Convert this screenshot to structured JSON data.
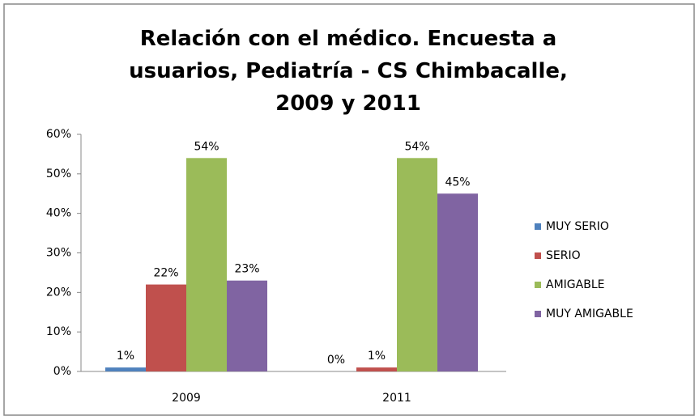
{
  "chart_data": {
    "type": "bar",
    "title": "Relación con el médico. Encuesta a usuarios, Pediatría - CS Chimbacalle, 2009 y 2011",
    "categories": [
      "2009",
      "2011"
    ],
    "series": [
      {
        "name": "MUY SERIO",
        "color": "#4f81bd",
        "values": [
          1,
          0
        ],
        "value_labels": [
          "1%",
          "0%"
        ]
      },
      {
        "name": "SERIO",
        "color": "#c0504d",
        "values": [
          22,
          1
        ],
        "value_labels": [
          "22%",
          "1%"
        ]
      },
      {
        "name": "AMIGABLE",
        "color": "#9bbb59",
        "values": [
          54,
          54
        ],
        "value_labels": [
          "54%",
          "54%"
        ]
      },
      {
        "name": "MUY AMIGABLE",
        "color": "#8064a2",
        "values": [
          23,
          45
        ],
        "value_labels": [
          "23%",
          "45%"
        ]
      }
    ],
    "ylim": [
      0,
      60
    ],
    "yticks": [
      {
        "value": 0,
        "label": "0%"
      },
      {
        "value": 10,
        "label": "10%"
      },
      {
        "value": 20,
        "label": "20%"
      },
      {
        "value": 30,
        "label": "30%"
      },
      {
        "value": 40,
        "label": "40%"
      },
      {
        "value": 50,
        "label": "50%"
      },
      {
        "value": 60,
        "label": "60%"
      }
    ],
    "grid": false,
    "legend": "right"
  }
}
